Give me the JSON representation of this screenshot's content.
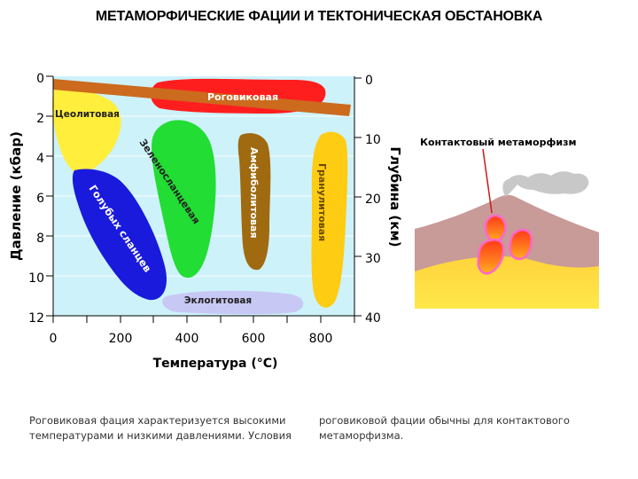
{
  "title": "МЕТАМОРФИЧЕСКИЕ ФАЦИИ И ТЕКТОНИЧЕСКАЯ ОБСТАНОВКА",
  "diagram": {
    "x_axis_label": "Температура (°С)",
    "x_ticks": [
      "0",
      "200",
      "400",
      "600",
      "800"
    ],
    "left_axis_label": "Давление (кбар)",
    "left_ticks": [
      "0",
      "2",
      "4",
      "6",
      "8",
      "10",
      "12"
    ],
    "right_axis_label": "Глубина (км)",
    "right_ticks": [
      "0",
      "10",
      "20",
      "30",
      "40"
    ],
    "facies": {
      "hornfels": "Роговиковая",
      "zeolite": "Цеолитовая",
      "greenschist": "Зеленосланцевая",
      "blueschist": "Голубых сланцев",
      "amphibolite": "Амфиболитовая",
      "granulite": "Гранулитовая",
      "eclogite": "Эклогитовая"
    },
    "colors": {
      "plot_bg": "#cdf2fa",
      "hornfels": "#ff1e1e",
      "zeolite": "#ffee3c",
      "greenschist": "#22dd33",
      "blueschist": "#1a1adc",
      "amphibolite": "#a06a10",
      "granulite": "#ffcc14",
      "eclogite": "#c8c8f4",
      "geotherm_band": "#cc6a1e"
    }
  },
  "contact_panel": {
    "label": "Контактовый метаморфизм"
  },
  "captions": {
    "left": "Роговиковая фация характеризуется высокими температурами и низкими давлениями. Условия",
    "right": "роговиковой фации обычны для контактового метаморфизма."
  }
}
